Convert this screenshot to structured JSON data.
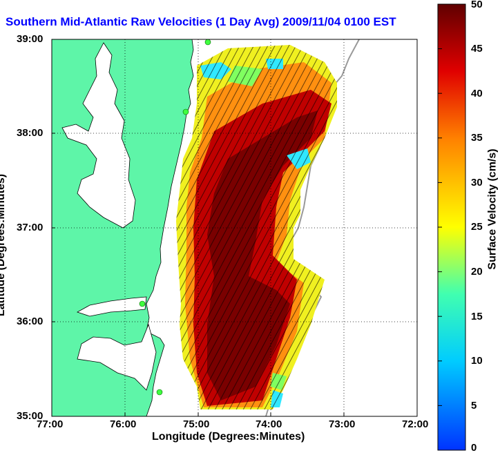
{
  "title": "Southern Mid-Atlantic Raw Velocities (1 Day Avg) 2009/11/04 0100 EST",
  "xlabel": "Longitude (Degrees:Minutes)",
  "ylabel": "Latitude (Degrees:Minutes)",
  "colorbar": {
    "label": "Surface Velocity (cm/s)",
    "min": 0,
    "max": 50,
    "ticks": [
      "50",
      "45",
      "40",
      "35",
      "30",
      "25",
      "20",
      "15",
      "10",
      "5",
      "0"
    ]
  },
  "x_ticks": [
    "77:00",
    "76:00",
    "75:00",
    "74:00",
    "73:00",
    "72:00"
  ],
  "y_ticks": [
    "39:00",
    "38:00",
    "37:00",
    "36:00",
    "35:00"
  ],
  "colors": {
    "land": "#5ef5a8",
    "sea": "#ffffff",
    "title": "#0000ff"
  }
}
